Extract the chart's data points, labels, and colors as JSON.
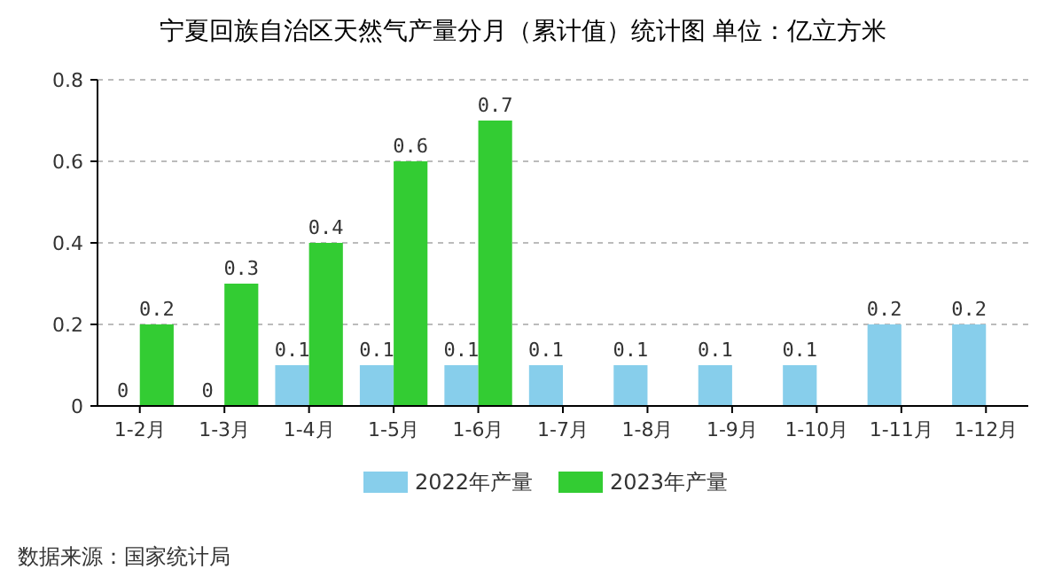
{
  "chart_data": {
    "type": "bar",
    "title": "宁夏回族自治区天然气产量分月（累计值）统计图 单位：亿立方米",
    "categories": [
      "1-2月",
      "1-3月",
      "1-4月",
      "1-5月",
      "1-6月",
      "1-7月",
      "1-8月",
      "1-9月",
      "1-10月",
      "1-11月",
      "1-12月"
    ],
    "series": [
      {
        "name": "2022年产量",
        "color": "#87ceeb",
        "values": [
          0,
          0,
          0.1,
          0.1,
          0.1,
          0.1,
          0.1,
          0.1,
          0.1,
          0.2,
          0.2
        ]
      },
      {
        "name": "2023年产量",
        "color": "#33cc33",
        "values": [
          0.2,
          0.3,
          0.4,
          0.6,
          0.7,
          null,
          null,
          null,
          null,
          null,
          null
        ]
      }
    ],
    "ylim": [
      0,
      0.8
    ],
    "yticks": [
      0,
      0.2,
      0.4,
      0.6,
      0.8
    ],
    "grid": "y",
    "legend": "bottom",
    "data_labels": true,
    "annotations": [
      "数据来源：国家统计局"
    ]
  }
}
